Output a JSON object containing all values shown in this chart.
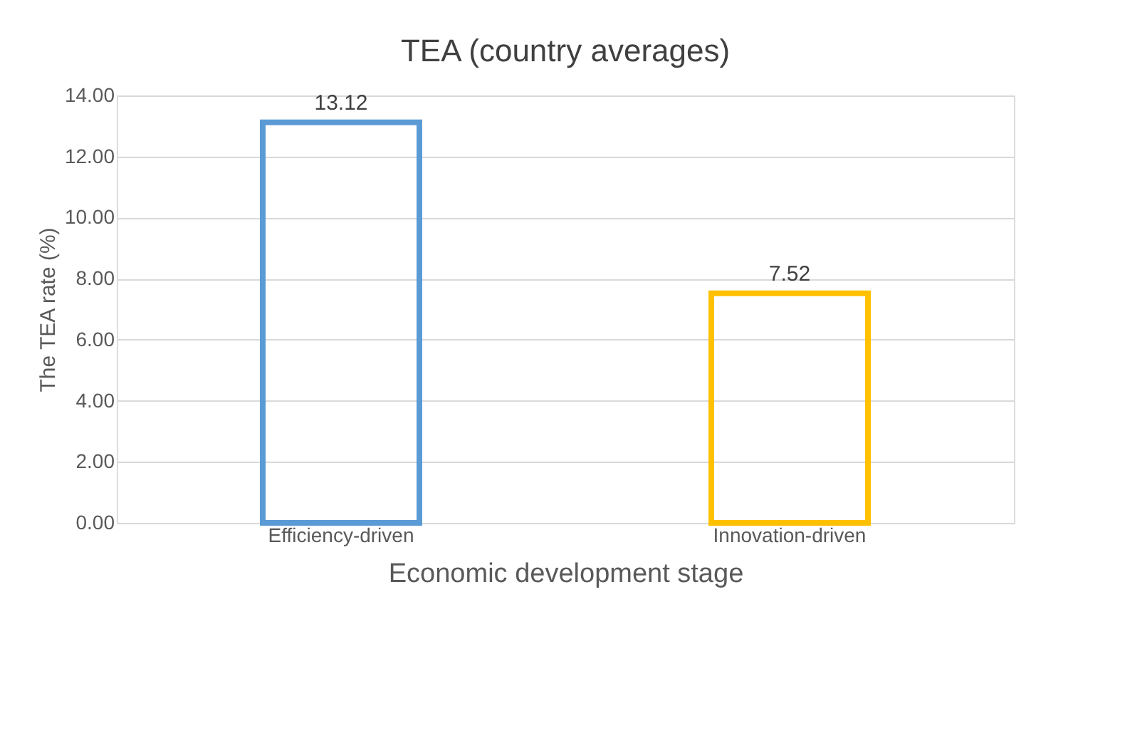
{
  "chart_data": {
    "type": "bar",
    "title": "TEA (country averages)",
    "xlabel": "Economic development stage",
    "ylabel": "The TEA rate (%)",
    "categories": [
      "Efficiency-driven",
      "Innovation-driven"
    ],
    "values": [
      13.12,
      7.52
    ],
    "colors": [
      "#5b9bd5",
      "#ffc000"
    ],
    "ylim": [
      0,
      14
    ],
    "yticks": [
      {
        "value": 0,
        "label": "0.00"
      },
      {
        "value": 2,
        "label": "2.00"
      },
      {
        "value": 4,
        "label": "4.00"
      },
      {
        "value": 6,
        "label": "6.00"
      },
      {
        "value": 8,
        "label": "8.00"
      },
      {
        "value": 10,
        "label": "10.00"
      },
      {
        "value": 12,
        "label": "12.00"
      },
      {
        "value": 14,
        "label": "14.00"
      }
    ],
    "grid": "y",
    "data_labels": true
  }
}
